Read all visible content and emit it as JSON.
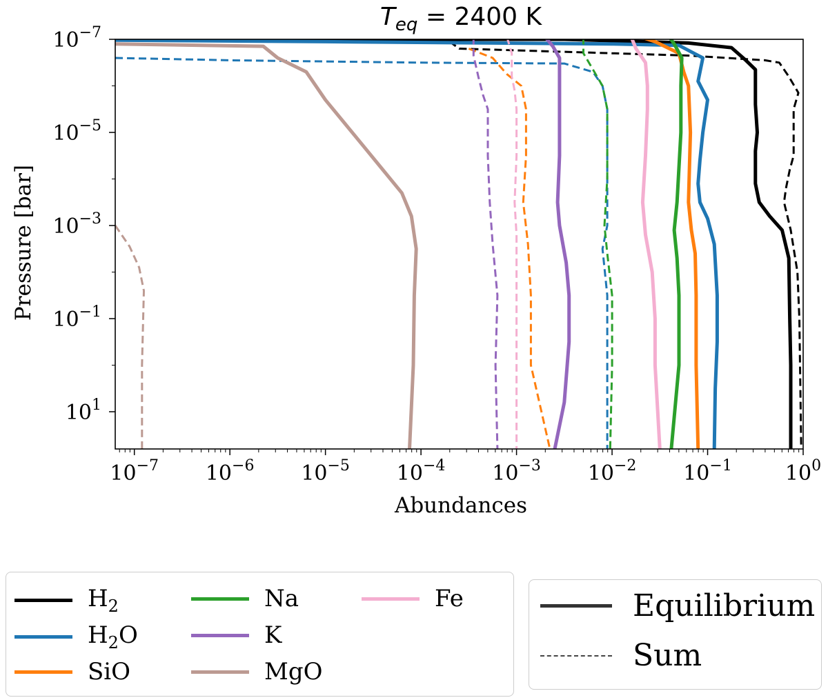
{
  "chart_data": {
    "type": "line",
    "title": "T_eq = 2400 K",
    "title_parts": {
      "symbol": "T",
      "subscript": "eq",
      "rest": " = 2400 K"
    },
    "xlabel": "Abundances",
    "ylabel": "Pressure [bar]",
    "xscale": "log",
    "yscale": "log",
    "y_inverted": true,
    "xlim_exp": [
      -7.2,
      0
    ],
    "ylim_exp": [
      -7,
      1.8
    ],
    "x_ticks": [
      {
        "exp": -7,
        "base": "10",
        "power": "−7"
      },
      {
        "exp": -6,
        "base": "10",
        "power": "−6"
      },
      {
        "exp": -5,
        "base": "10",
        "power": "−5"
      },
      {
        "exp": -4,
        "base": "10",
        "power": "−4"
      },
      {
        "exp": -3,
        "base": "10",
        "power": "−3"
      },
      {
        "exp": -2,
        "base": "10",
        "power": "−2"
      },
      {
        "exp": -1,
        "base": "10",
        "power": "−1"
      },
      {
        "exp": 0,
        "base": "10",
        "power": "0"
      }
    ],
    "y_ticks": [
      {
        "exp": -7,
        "base": "10",
        "power": "−7"
      },
      {
        "exp": -5,
        "base": "10",
        "power": "−5"
      },
      {
        "exp": -3,
        "base": "10",
        "power": "−3"
      },
      {
        "exp": -1,
        "base": "10",
        "power": "−1"
      },
      {
        "exp": 1,
        "base": "10",
        "power": "1"
      }
    ],
    "series": [
      {
        "name": "H2",
        "label": "H",
        "sub": "2",
        "color": "#000000",
        "style": "Equilibrium",
        "points": [
          [
            -7.2,
            -7
          ],
          [
            -2.5,
            -7
          ],
          [
            -1.2,
            -6.92
          ],
          [
            -0.75,
            -6.82
          ],
          [
            -0.6,
            -6.55
          ],
          [
            -0.5,
            -6.35
          ],
          [
            -0.5,
            -5.6
          ],
          [
            -0.48,
            -5.0
          ],
          [
            -0.5,
            -4.6
          ],
          [
            -0.5,
            -3.9
          ],
          [
            -0.46,
            -3.5
          ],
          [
            -0.35,
            -3.2
          ],
          [
            -0.22,
            -2.9
          ],
          [
            -0.15,
            -2.3
          ],
          [
            -0.14,
            -1.0
          ],
          [
            -0.13,
            0
          ],
          [
            -0.13,
            1.8
          ]
        ]
      },
      {
        "name": "H2 sum",
        "color": "#000000",
        "style": "Sum",
        "points": [
          [
            -3.7,
            -6.95
          ],
          [
            -3.6,
            -6.8
          ],
          [
            -1.2,
            -6.65
          ],
          [
            -0.4,
            -6.55
          ],
          [
            -0.25,
            -6.5
          ],
          [
            -0.15,
            -6.2
          ],
          [
            -0.05,
            -5.85
          ],
          [
            -0.1,
            -5.5
          ],
          [
            -0.1,
            -4.5
          ],
          [
            -0.14,
            -4.2
          ],
          [
            -0.18,
            -3.8
          ],
          [
            -0.2,
            -3.5
          ],
          [
            -0.13,
            -2.9
          ],
          [
            -0.06,
            -2.0
          ],
          [
            -0.04,
            -1.0
          ],
          [
            -0.02,
            1.8
          ]
        ]
      },
      {
        "name": "H2O",
        "label": "H",
        "sub": "2",
        "suffix": "O",
        "color": "#1f77b4",
        "style": "Equilibrium",
        "points": [
          [
            -7.2,
            -6.98
          ],
          [
            -5.0,
            -6.95
          ],
          [
            -2.0,
            -6.9
          ],
          [
            -1.3,
            -6.87
          ],
          [
            -1.05,
            -6.6
          ],
          [
            -1.1,
            -6.1
          ],
          [
            -1.0,
            -5.7
          ],
          [
            -1.05,
            -5.0
          ],
          [
            -1.08,
            -4.4
          ],
          [
            -1.1,
            -3.9
          ],
          [
            -1.08,
            -3.5
          ],
          [
            -1.0,
            -3.15
          ],
          [
            -0.93,
            -2.6
          ],
          [
            -0.9,
            -1.5
          ],
          [
            -0.9,
            -0.5
          ],
          [
            -0.92,
            0.5
          ],
          [
            -0.93,
            1.8
          ]
        ]
      },
      {
        "name": "H2O sum",
        "color": "#1f77b4",
        "style": "Sum",
        "points": [
          [
            -7.2,
            -6.6
          ],
          [
            -6.0,
            -6.55
          ],
          [
            -4.0,
            -6.5
          ],
          [
            -2.5,
            -6.48
          ],
          [
            -2.2,
            -6.3
          ],
          [
            -2.1,
            -6.0
          ],
          [
            -2.05,
            -5.5
          ],
          [
            -2.05,
            -3.0
          ],
          [
            -2.1,
            -2.5
          ],
          [
            -2.05,
            -1.5
          ],
          [
            -2.05,
            0.5
          ],
          [
            -2.05,
            1.8
          ]
        ]
      },
      {
        "name": "SiO",
        "label": "SiO",
        "color": "#ff7f0e",
        "style": "Equilibrium",
        "points": [
          [
            -1.7,
            -7.05
          ],
          [
            -1.55,
            -6.95
          ],
          [
            -1.3,
            -6.7
          ],
          [
            -1.25,
            -6.3
          ],
          [
            -1.2,
            -6.0
          ],
          [
            -1.18,
            -5.0
          ],
          [
            -1.2,
            -3.5
          ],
          [
            -1.17,
            -2.9
          ],
          [
            -1.13,
            -2.4
          ],
          [
            -1.12,
            -1.5
          ],
          [
            -1.12,
            0
          ],
          [
            -1.1,
            1.8
          ]
        ]
      },
      {
        "name": "SiO sum",
        "color": "#ff7f0e",
        "style": "Sum",
        "points": [
          [
            -3.5,
            -6.8
          ],
          [
            -3.25,
            -6.6
          ],
          [
            -3.1,
            -6.25
          ],
          [
            -2.95,
            -6.0
          ],
          [
            -2.9,
            -5.5
          ],
          [
            -2.9,
            -4.5
          ],
          [
            -2.93,
            -3.5
          ],
          [
            -2.88,
            -2.6
          ],
          [
            -2.85,
            -1.5
          ],
          [
            -2.85,
            0
          ],
          [
            -2.65,
            1.8
          ]
        ]
      },
      {
        "name": "Na",
        "label": "Na",
        "color": "#2ca02c",
        "style": "Equilibrium",
        "points": [
          [
            -1.4,
            -7.05
          ],
          [
            -1.35,
            -6.9
          ],
          [
            -1.27,
            -6.6
          ],
          [
            -1.28,
            -6.0
          ],
          [
            -1.28,
            -5.0
          ],
          [
            -1.32,
            -3.5
          ],
          [
            -1.35,
            -2.9
          ],
          [
            -1.32,
            -2.3
          ],
          [
            -1.3,
            -1.5
          ],
          [
            -1.3,
            0
          ],
          [
            -1.38,
            1.8
          ]
        ]
      },
      {
        "name": "Na sum",
        "color": "#2ca02c",
        "style": "Sum",
        "points": [
          [
            -2.3,
            -7.05
          ],
          [
            -2.3,
            -6.7
          ],
          [
            -2.2,
            -6.35
          ],
          [
            -2.1,
            -6.0
          ],
          [
            -2.05,
            -5.5
          ],
          [
            -2.05,
            -4.0
          ],
          [
            -2.08,
            -3.0
          ],
          [
            -2.05,
            -2.4
          ],
          [
            -2.0,
            -1.5
          ],
          [
            -2.0,
            0
          ],
          [
            -2.02,
            1.8
          ]
        ]
      },
      {
        "name": "K",
        "label": "K",
        "color": "#9467bd",
        "style": "Equilibrium",
        "points": [
          [
            -2.7,
            -7.05
          ],
          [
            -2.62,
            -6.85
          ],
          [
            -2.55,
            -6.6
          ],
          [
            -2.55,
            -6.0
          ],
          [
            -2.55,
            -4.5
          ],
          [
            -2.57,
            -3.5
          ],
          [
            -2.55,
            -3.0
          ],
          [
            -2.48,
            -2.2
          ],
          [
            -2.45,
            -1.5
          ],
          [
            -2.45,
            -0.5
          ],
          [
            -2.5,
            0.8
          ],
          [
            -2.6,
            1.8
          ]
        ]
      },
      {
        "name": "K sum",
        "color": "#9467bd",
        "style": "Sum",
        "points": [
          [
            -3.45,
            -7.05
          ],
          [
            -3.45,
            -6.65
          ],
          [
            -3.4,
            -6.2
          ],
          [
            -3.35,
            -5.8
          ],
          [
            -3.3,
            -5.5
          ],
          [
            -3.3,
            -4.5
          ],
          [
            -3.28,
            -3.5
          ],
          [
            -3.25,
            -2.6
          ],
          [
            -3.2,
            -1.5
          ],
          [
            -3.22,
            0
          ],
          [
            -3.2,
            1.8
          ]
        ]
      },
      {
        "name": "MgO",
        "label": "MgO",
        "color": "#bc9a92",
        "style": "Equilibrium",
        "points": [
          [
            -7.2,
            -6.9
          ],
          [
            -5.65,
            -6.85
          ],
          [
            -5.5,
            -6.6
          ],
          [
            -5.2,
            -6.3
          ],
          [
            -5.0,
            -5.7
          ],
          [
            -4.8,
            -5.2
          ],
          [
            -4.6,
            -4.7
          ],
          [
            -4.4,
            -4.2
          ],
          [
            -4.2,
            -3.7
          ],
          [
            -4.1,
            -3.2
          ],
          [
            -4.05,
            -2.5
          ],
          [
            -4.07,
            -1.5
          ],
          [
            -4.08,
            0
          ],
          [
            -4.12,
            1.8
          ]
        ]
      },
      {
        "name": "MgO sum",
        "color": "#bc9a92",
        "style": "Sum",
        "points": [
          [
            -7.2,
            -3.0
          ],
          [
            -7.05,
            -2.55
          ],
          [
            -6.95,
            -2.1
          ],
          [
            -6.9,
            -1.6
          ],
          [
            -6.92,
            0
          ],
          [
            -6.92,
            1.8
          ]
        ]
      },
      {
        "name": "Fe",
        "label": "Fe",
        "color": "#f4aed0",
        "style": "Equilibrium",
        "points": [
          [
            -1.8,
            -7.05
          ],
          [
            -1.75,
            -6.8
          ],
          [
            -1.65,
            -6.5
          ],
          [
            -1.63,
            -6.0
          ],
          [
            -1.63,
            -5.5
          ],
          [
            -1.65,
            -4.5
          ],
          [
            -1.68,
            -3.5
          ],
          [
            -1.65,
            -2.8
          ],
          [
            -1.58,
            -2.0
          ],
          [
            -1.55,
            -1.0
          ],
          [
            -1.55,
            0
          ],
          [
            -1.5,
            1.8
          ]
        ]
      },
      {
        "name": "Fe sum",
        "color": "#f4aed0",
        "style": "Sum",
        "points": [
          [
            -3.1,
            -7.05
          ],
          [
            -3.05,
            -6.7
          ],
          [
            -3.05,
            -6.2
          ],
          [
            -3.02,
            -5.9
          ],
          [
            -3.0,
            -5.5
          ],
          [
            -3.0,
            -4.5
          ],
          [
            -3.02,
            -3.5
          ],
          [
            -3.0,
            -2.8
          ],
          [
            -3.0,
            -1.5
          ],
          [
            -3.0,
            0
          ],
          [
            -3.0,
            1.8
          ]
        ]
      }
    ]
  },
  "legend_species": [
    {
      "label": "H",
      "sub": "2",
      "suffix": "",
      "color": "#000000"
    },
    {
      "label": "H",
      "sub": "2",
      "suffix": "O",
      "color": "#1f77b4"
    },
    {
      "label": "SiO",
      "sub": "",
      "suffix": "",
      "color": "#ff7f0e"
    },
    {
      "label": "Na",
      "sub": "",
      "suffix": "",
      "color": "#2ca02c"
    },
    {
      "label": "K",
      "sub": "",
      "suffix": "",
      "color": "#9467bd"
    },
    {
      "label": "MgO",
      "sub": "",
      "suffix": "",
      "color": "#bc9a92"
    },
    {
      "label": "Fe",
      "sub": "",
      "suffix": "",
      "color": "#f4aed0"
    }
  ],
  "legend_styles": [
    {
      "label": "Equilibrium",
      "style": "solid"
    },
    {
      "label": "Sum",
      "style": "dashed"
    }
  ]
}
